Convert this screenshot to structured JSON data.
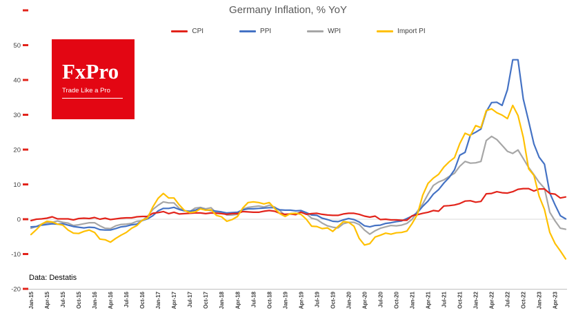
{
  "title": "Germany Inflation, % YoY",
  "source_note": "Data: Destatis",
  "logo": {
    "brand": "FxPro",
    "tagline": "Trade Like a Pro",
    "bg_color": "#e30613",
    "text_color": "#ffffff"
  },
  "colors": {
    "cpi": "#e2231a",
    "ppi": "#4472c4",
    "wpi": "#a6a6a6",
    "import_pi": "#ffc000",
    "title": "#595959",
    "zero_line": "#d9d9d9",
    "axis_line": "#bfbfbf",
    "axis_tick": "#e2231a",
    "axis_label": "#404040"
  },
  "legend": [
    {
      "label": "CPI",
      "color": "#e2231a"
    },
    {
      "label": "PPI",
      "color": "#4472c4"
    },
    {
      "label": "WPI",
      "color": "#a6a6a6"
    },
    {
      "label": "Import PI",
      "color": "#ffc000"
    }
  ],
  "chart_data": {
    "type": "line",
    "title": "Germany Inflation, % YoY",
    "x_interval": "monthly",
    "x_start": "Jan-15",
    "x_end": "Jun-23",
    "x_tick_labels": [
      "Jan-15",
      "Apr-15",
      "Jul-15",
      "Oct-15",
      "Jan-16",
      "Apr-16",
      "Jul-16",
      "Oct-16",
      "Jan-17",
      "Apr-17",
      "Jul-17",
      "Oct-17",
      "Jan-18",
      "Apr-18",
      "Jul-18",
      "Oct-18",
      "Jan-19",
      "Apr-19",
      "Jul-19",
      "Oct-19",
      "Jan-20",
      "Apr-20",
      "Jul-20",
      "Oct-20",
      "Jan-21",
      "Apr-21",
      "Jul-21",
      "Oct-21",
      "Jan-22",
      "Apr-22",
      "Jul-22",
      "Oct-22",
      "Jan-23",
      "Apr-23"
    ],
    "ylim": [
      -20,
      60
    ],
    "yticks": [
      50,
      40,
      30,
      20,
      10,
      0,
      -10,
      -20
    ],
    "zero_line": true,
    "grid": "off",
    "legend_position": "top",
    "series": [
      {
        "name": "CPI",
        "color": "#e2231a",
        "values": [
          -0.4,
          0.0,
          0.1,
          0.3,
          0.7,
          0.1,
          0.1,
          0.1,
          -0.2,
          0.2,
          0.3,
          0.2,
          0.5,
          0.0,
          0.3,
          -0.1,
          0.1,
          0.3,
          0.4,
          0.4,
          0.7,
          0.8,
          0.8,
          1.7,
          1.9,
          2.2,
          1.6,
          2.0,
          1.5,
          1.6,
          1.7,
          1.8,
          1.8,
          1.6,
          1.8,
          1.7,
          1.6,
          1.4,
          1.6,
          1.6,
          2.2,
          2.1,
          2.0,
          2.0,
          2.3,
          2.5,
          2.3,
          1.7,
          1.4,
          1.5,
          1.3,
          2.0,
          1.4,
          1.6,
          1.7,
          1.4,
          1.2,
          1.1,
          1.1,
          1.5,
          1.7,
          1.7,
          1.4,
          0.9,
          0.6,
          0.9,
          -0.1,
          0.0,
          -0.2,
          -0.2,
          -0.3,
          -0.3,
          1.0,
          1.3,
          1.7,
          2.0,
          2.5,
          2.3,
          3.8,
          3.9,
          4.1,
          4.5,
          5.2,
          5.3,
          4.9,
          5.1,
          7.3,
          7.4,
          7.9,
          7.6,
          7.5,
          7.9,
          8.6,
          8.8,
          8.8,
          8.1,
          8.7,
          8.7,
          7.4,
          7.2,
          6.1,
          6.4
        ]
      },
      {
        "name": "PPI",
        "color": "#4472c4",
        "values": [
          -2.2,
          -2.1,
          -1.7,
          -1.5,
          -1.3,
          -1.4,
          -1.3,
          -1.7,
          -2.1,
          -2.3,
          -2.5,
          -2.3,
          -2.4,
          -3.0,
          -3.1,
          -3.1,
          -2.7,
          -2.2,
          -2.0,
          -1.6,
          -1.4,
          -0.4,
          0.1,
          1.0,
          2.4,
          3.1,
          3.1,
          3.4,
          2.8,
          2.4,
          2.3,
          2.6,
          3.1,
          2.7,
          2.5,
          2.3,
          2.1,
          1.8,
          1.9,
          2.0,
          2.7,
          3.0,
          3.0,
          3.1,
          3.2,
          3.3,
          3.3,
          2.7,
          2.6,
          2.6,
          2.4,
          2.5,
          1.9,
          1.2,
          1.1,
          0.3,
          -0.1,
          -0.6,
          -0.7,
          -0.2,
          0.2,
          -0.1,
          -0.8,
          -1.9,
          -2.2,
          -1.8,
          -1.7,
          -1.2,
          -1.0,
          -0.7,
          -0.5,
          0.2,
          0.9,
          1.9,
          3.7,
          5.2,
          7.2,
          8.5,
          10.4,
          12.0,
          14.2,
          18.4,
          19.2,
          24.2,
          25.0,
          25.9,
          30.9,
          33.5,
          33.6,
          32.7,
          37.2,
          45.8,
          45.8,
          34.5,
          28.2,
          21.6,
          17.8,
          15.8,
          7.5,
          4.1,
          1.0,
          0.1
        ]
      },
      {
        "name": "WPI",
        "color": "#a6a6a6",
        "values": [
          -2.6,
          -2.1,
          -1.4,
          -1.0,
          -0.9,
          -0.5,
          -0.9,
          -1.1,
          -1.8,
          -1.6,
          -1.3,
          -1.0,
          -1.0,
          -1.9,
          -2.6,
          -2.7,
          -1.9,
          -1.5,
          -1.4,
          -1.2,
          -0.6,
          -0.4,
          0.8,
          2.8,
          4.0,
          5.0,
          4.7,
          4.7,
          3.1,
          2.5,
          2.2,
          3.2,
          3.4,
          3.0,
          3.3,
          1.8,
          2.0,
          1.2,
          1.2,
          1.4,
          2.9,
          3.4,
          3.6,
          3.8,
          3.5,
          4.0,
          3.5,
          2.5,
          1.1,
          1.6,
          1.6,
          2.1,
          1.6,
          0.3,
          -0.1,
          -1.1,
          -1.9,
          -2.3,
          -2.5,
          -1.3,
          -0.9,
          -0.9,
          -1.5,
          -3.1,
          -4.3,
          -3.3,
          -2.6,
          -2.2,
          -1.8,
          -1.9,
          -1.7,
          -1.2,
          0.0,
          2.3,
          4.4,
          7.2,
          9.7,
          10.7,
          11.3,
          12.3,
          13.2,
          15.2,
          16.6,
          16.1,
          16.2,
          16.6,
          22.6,
          23.8,
          22.9,
          21.2,
          19.5,
          18.9,
          19.9,
          17.4,
          14.9,
          12.8,
          10.6,
          8.9,
          2.0,
          -0.5,
          -2.6,
          -2.9
        ]
      },
      {
        "name": "Import PI",
        "color": "#ffc000",
        "values": [
          -4.4,
          -3.0,
          -1.4,
          -0.6,
          -0.8,
          -1.4,
          -1.7,
          -3.1,
          -4.0,
          -4.1,
          -3.5,
          -3.1,
          -3.8,
          -5.7,
          -5.9,
          -6.6,
          -5.5,
          -4.6,
          -3.8,
          -2.6,
          -1.8,
          -0.3,
          0.3,
          3.5,
          6.0,
          7.4,
          6.1,
          6.1,
          4.1,
          2.5,
          1.9,
          2.1,
          3.0,
          2.6,
          2.7,
          1.1,
          0.7,
          -0.6,
          -0.1,
          0.8,
          3.2,
          4.8,
          5.0,
          4.8,
          4.4,
          4.8,
          3.1,
          1.6,
          0.8,
          1.6,
          1.7,
          1.4,
          0.0,
          -2.0,
          -2.1,
          -2.7,
          -2.5,
          -3.5,
          -2.1,
          -0.7,
          -0.9,
          -2.0,
          -5.5,
          -7.4,
          -7.0,
          -5.1,
          -4.6,
          -4.0,
          -4.3,
          -3.9,
          -3.8,
          -3.4,
          -1.2,
          1.4,
          6.9,
          10.3,
          11.8,
          12.9,
          15.0,
          16.5,
          17.7,
          21.7,
          24.7,
          24.0,
          26.9,
          26.3,
          31.2,
          31.7,
          30.6,
          29.9,
          28.9,
          32.7,
          29.8,
          23.5,
          14.5,
          12.6,
          6.6,
          2.8,
          -3.8,
          -7.0,
          -9.1,
          -11.4
        ]
      }
    ]
  }
}
